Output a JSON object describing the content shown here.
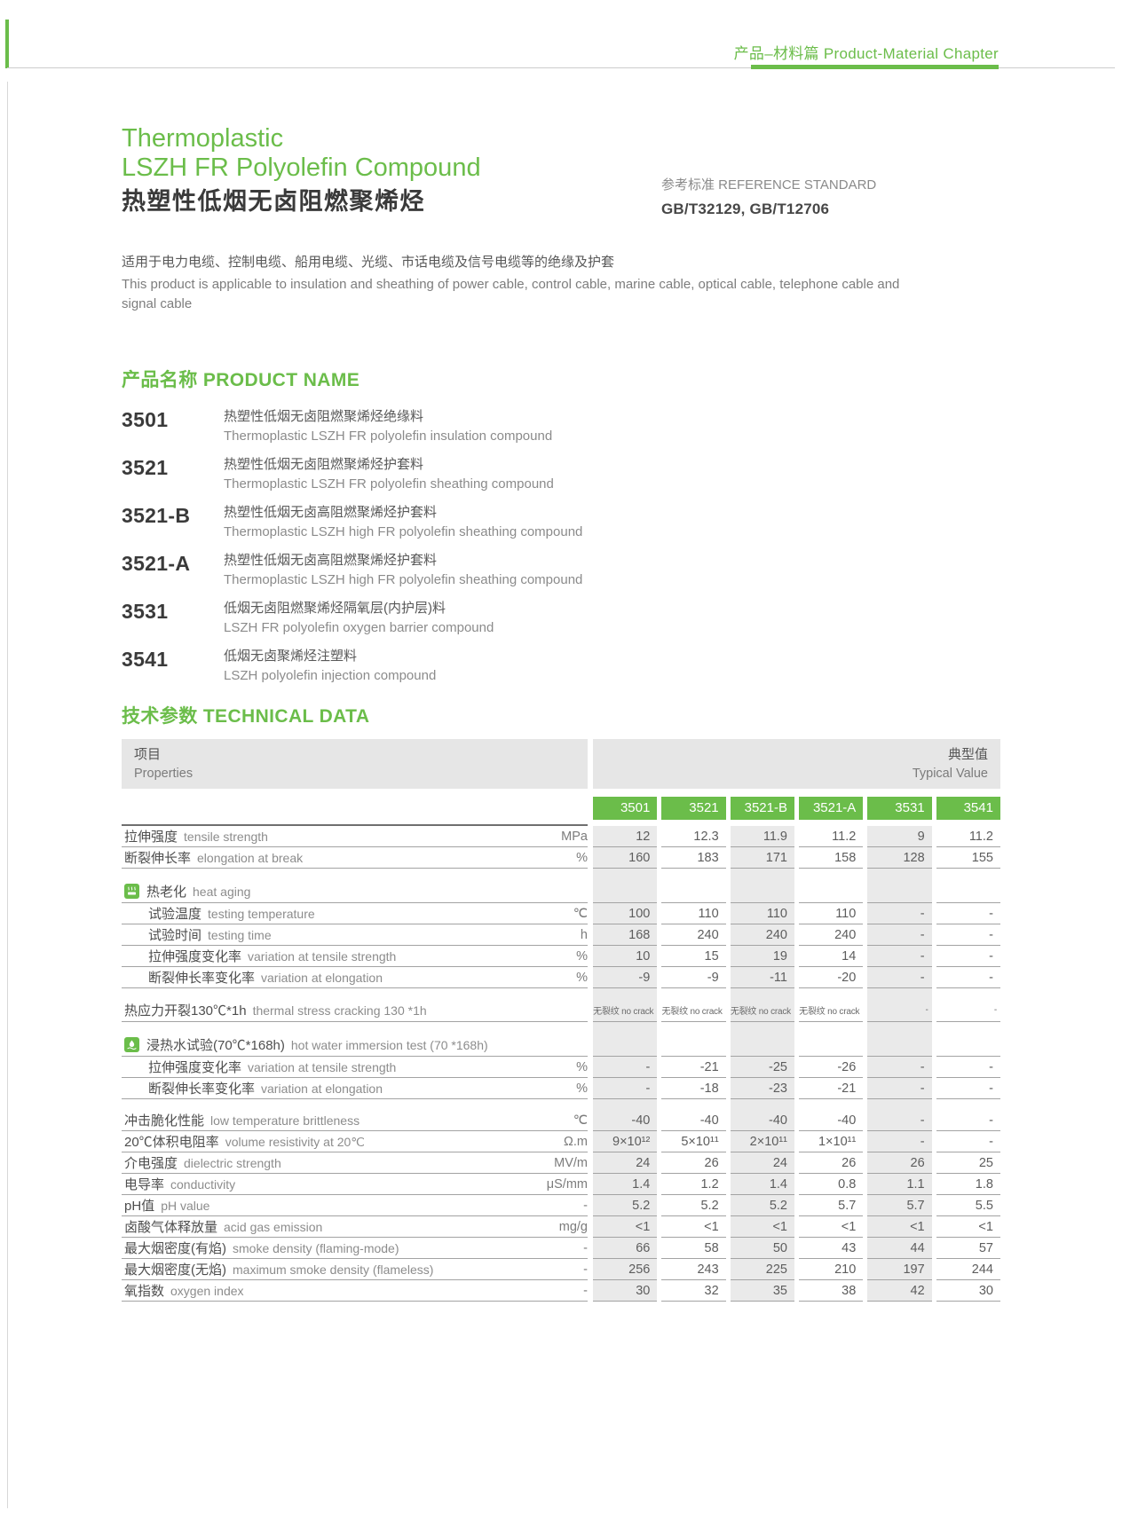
{
  "page": {
    "header": {
      "chapter": "产品–材料篇 Product-Material Chapter"
    },
    "title": {
      "en_line1": "Thermoplastic",
      "en_line2": "LSZH FR Polyolefin Compound",
      "zh": "热塑性低烟无卤阻燃聚烯烃"
    },
    "reference": {
      "label": "参考标准 REFERENCE STANDARD",
      "value": "GB/T32129, GB/T12706"
    },
    "description": {
      "zh": "适用于电力电缆、控制电缆、船用电缆、光缆、市话电缆及信号电缆等的绝缘及护套",
      "en": "This product is applicable to insulation and sheathing of power cable, control cable, marine cable, optical cable, telephone cable and signal cable"
    },
    "product_name_heading": "产品名称 PRODUCT NAME",
    "products": [
      {
        "code": "3501",
        "zh": "热塑性低烟无卤阻燃聚烯烃绝缘料",
        "en": "Thermoplastic LSZH FR polyolefin insulation compound"
      },
      {
        "code": "3521",
        "zh": "热塑性低烟无卤阻燃聚烯烃护套料",
        "en": "Thermoplastic LSZH FR polyolefin sheathing compound"
      },
      {
        "code": "3521-B",
        "zh": "热塑性低烟无卤高阻燃聚烯烃护套料",
        "en": "Thermoplastic LSZH high FR polyolefin sheathing compound"
      },
      {
        "code": "3521-A",
        "zh": "热塑性低烟无卤高阻燃聚烯烃护套料",
        "en": "Thermoplastic LSZH high FR polyolefin sheathing compound"
      },
      {
        "code": "3531",
        "zh": "低烟无卤阻燃聚烯烃隔氧层(内护层)料",
        "en": "LSZH FR polyolefin oxygen barrier compound"
      },
      {
        "code": "3541",
        "zh": "低烟无卤聚烯烃注塑料",
        "en": "LSZH polyolefin injection compound"
      }
    ],
    "technical_heading": "技术参数 TECHNICAL DATA",
    "table": {
      "properties_header": {
        "zh": "项目",
        "en": "Properties"
      },
      "typical_header": {
        "zh": "典型值",
        "en": "Typical Value"
      },
      "columns": [
        "3501",
        "3521",
        "3521-B",
        "3521-A",
        "3531",
        "3541"
      ],
      "rows": [
        {
          "t": "row",
          "zh": "拉伸强度",
          "en": "tensile strength",
          "unit": "MPa",
          "values": [
            "12",
            "12.3",
            "11.9",
            "11.2",
            "9",
            "11.2"
          ]
        },
        {
          "t": "row",
          "zh": "断裂伸长率",
          "en": "elongation at break",
          "unit": "%",
          "values": [
            "160",
            "183",
            "171",
            "158",
            "128",
            "155"
          ]
        },
        {
          "t": "gap"
        },
        {
          "t": "section",
          "zh": "热老化",
          "en": "heat aging",
          "icon": "heat-icon"
        },
        {
          "t": "row",
          "indent": true,
          "zh": "试验温度",
          "en": "testing temperature",
          "unit": "℃",
          "values": [
            "100",
            "110",
            "110",
            "110",
            "-",
            "-"
          ]
        },
        {
          "t": "row",
          "indent": true,
          "zh": "试验时间",
          "en": "testing time",
          "unit": "h",
          "values": [
            "168",
            "240",
            "240",
            "240",
            "-",
            "-"
          ]
        },
        {
          "t": "row",
          "indent": true,
          "zh": "拉伸强度变化率",
          "en": "variation at tensile strength",
          "unit": "%",
          "values": [
            "10",
            "15",
            "19",
            "14",
            "-",
            "-"
          ]
        },
        {
          "t": "row",
          "indent": true,
          "zh": "断裂伸长率变化率",
          "en": "variation at elongation",
          "unit": "%",
          "values": [
            "-9",
            "-9",
            "-11",
            "-20",
            "-",
            "-"
          ]
        },
        {
          "t": "gap"
        },
        {
          "t": "row",
          "small": true,
          "zh": "热应力开裂130℃*1h",
          "en": "thermal stress cracking 130 *1h",
          "unit": "",
          "values": [
            "无裂纹 no crack",
            "无裂纹 no crack",
            "无裂纹 no crack",
            "无裂纹 no crack",
            "-",
            "-"
          ]
        },
        {
          "t": "gap"
        },
        {
          "t": "section",
          "zh": "浸热水试验(70℃*168h)",
          "en": "hot water immersion test (70 *168h)",
          "icon": "water-icon"
        },
        {
          "t": "row",
          "indent": true,
          "zh": "拉伸强度变化率",
          "en": "variation at tensile strength",
          "unit": "%",
          "values": [
            "-",
            "-21",
            "-25",
            "-26",
            "-",
            "-"
          ]
        },
        {
          "t": "row",
          "indent": true,
          "zh": "断裂伸长率变化率",
          "en": "variation at elongation",
          "unit": "%",
          "values": [
            "-",
            "-18",
            "-23",
            "-21",
            "-",
            "-"
          ]
        },
        {
          "t": "gap"
        },
        {
          "t": "row",
          "zh": "冲击脆化性能",
          "en": "low temperature brittleness",
          "unit": "℃",
          "values": [
            "-40",
            "-40",
            "-40",
            "-40",
            "-",
            "-"
          ]
        },
        {
          "t": "row",
          "zh": "20℃体积电阻率",
          "en": "volume resistivity at 20℃",
          "unit": "Ω.m",
          "values": [
            "9×10¹²",
            "5×10¹¹",
            "2×10¹¹",
            "1×10¹¹",
            "-",
            "-"
          ]
        },
        {
          "t": "row",
          "zh": "介电强度",
          "en": "dielectric strength",
          "unit": "MV/m",
          "values": [
            "24",
            "26",
            "24",
            "26",
            "26",
            "25"
          ]
        },
        {
          "t": "row",
          "zh": "电导率",
          "en": "conductivity",
          "unit": "μS/mm",
          "values": [
            "1.4",
            "1.2",
            "1.4",
            "0.8",
            "1.1",
            "1.8"
          ]
        },
        {
          "t": "row",
          "zh": "pH值",
          "en": "pH value",
          "unit": "-",
          "values": [
            "5.2",
            "5.2",
            "5.2",
            "5.7",
            "5.7",
            "5.5"
          ]
        },
        {
          "t": "row",
          "zh": "卤酸气体释放量",
          "en": "acid gas emission",
          "unit": "mg/g",
          "values": [
            "<1",
            "<1",
            "<1",
            "<1",
            "<1",
            "<1"
          ]
        },
        {
          "t": "row",
          "zh": "最大烟密度(有焰)",
          "en": "smoke density (flaming-mode)",
          "unit": "-",
          "values": [
            "66",
            "58",
            "50",
            "43",
            "44",
            "57"
          ]
        },
        {
          "t": "row",
          "zh": "最大烟密度(无焰)",
          "en": "maximum smoke density (flameless)",
          "unit": "-",
          "values": [
            "256",
            "243",
            "225",
            "210",
            "197",
            "244"
          ]
        },
        {
          "t": "row",
          "zh": "氧指数",
          "en": "oxygen index",
          "unit": "-",
          "values": [
            "30",
            "32",
            "35",
            "38",
            "42",
            "30"
          ]
        }
      ]
    },
    "colors": {
      "green": "#6bbd4a",
      "stripe": "#eaeaea",
      "header_bg": "#e6e6e6"
    }
  }
}
